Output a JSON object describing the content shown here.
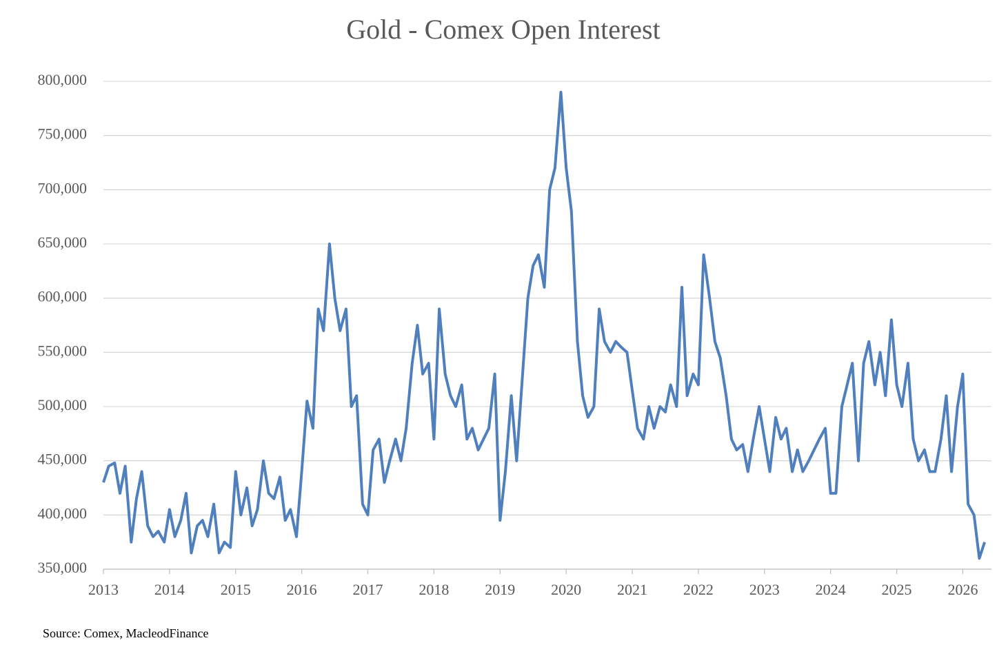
{
  "chart_data": {
    "type": "line",
    "title": "Gold - Comex Open Interest",
    "source": "Source: Comex,  MacleodFinance",
    "x": [
      2013,
      2013.08,
      2013.17,
      2013.25,
      2013.33,
      2013.42,
      2013.5,
      2013.58,
      2013.67,
      2013.75,
      2013.83,
      2013.92,
      2014,
      2014.08,
      2014.17,
      2014.25,
      2014.33,
      2014.42,
      2014.5,
      2014.58,
      2014.67,
      2014.75,
      2014.83,
      2014.92,
      2015,
      2015.08,
      2015.17,
      2015.25,
      2015.33,
      2015.42,
      2015.5,
      2015.58,
      2015.67,
      2015.75,
      2015.83,
      2015.92,
      2016,
      2016.08,
      2016.17,
      2016.25,
      2016.33,
      2016.42,
      2016.5,
      2016.58,
      2016.67,
      2016.75,
      2016.83,
      2016.92,
      2017,
      2017.08,
      2017.17,
      2017.25,
      2017.33,
      2017.42,
      2017.5,
      2017.58,
      2017.67,
      2017.75,
      2017.83,
      2017.92,
      2018,
      2018.08,
      2018.17,
      2018.25,
      2018.33,
      2018.42,
      2018.5,
      2018.58,
      2018.67,
      2018.75,
      2018.83,
      2018.92,
      2019,
      2019.08,
      2019.17,
      2019.25,
      2019.33,
      2019.42,
      2019.5,
      2019.58,
      2019.67,
      2019.75,
      2019.83,
      2019.92,
      2020,
      2020.08,
      2020.17,
      2020.25,
      2020.33,
      2020.42,
      2020.5,
      2020.58,
      2020.67,
      2020.75,
      2020.83,
      2020.92,
      2021,
      2021.08,
      2021.17,
      2021.25,
      2021.33,
      2021.42,
      2021.5,
      2021.58,
      2021.67,
      2021.75,
      2021.83,
      2021.92,
      2022,
      2022.08,
      2022.17,
      2022.25,
      2022.33,
      2022.42,
      2022.5,
      2022.58,
      2022.67,
      2022.75,
      2022.83,
      2022.92,
      2023,
      2023.08,
      2023.17,
      2023.25,
      2023.33,
      2023.42,
      2023.5,
      2023.58,
      2023.67,
      2023.75,
      2023.83,
      2023.92,
      2024,
      2024.08,
      2024.17,
      2024.25,
      2024.33,
      2024.42,
      2024.5,
      2024.58,
      2024.67,
      2024.75,
      2024.83,
      2024.92,
      2025,
      2025.08,
      2025.17,
      2025.25,
      2025.33,
      2025.42,
      2025.5,
      2025.58,
      2025.67,
      2025.75,
      2025.83,
      2025.92,
      2026,
      2026.08,
      2026.17,
      2026.25,
      2026.33
    ],
    "series": [
      {
        "name": "Open Interest",
        "color": "#4f7fbd",
        "values": [
          430000,
          445000,
          448000,
          420000,
          445000,
          375000,
          415000,
          440000,
          390000,
          380000,
          385000,
          375000,
          405000,
          380000,
          395000,
          420000,
          365000,
          390000,
          395000,
          380000,
          410000,
          365000,
          375000,
          370000,
          440000,
          400000,
          425000,
          390000,
          405000,
          450000,
          420000,
          415000,
          435000,
          395000,
          405000,
          380000,
          440000,
          505000,
          480000,
          590000,
          570000,
          650000,
          600000,
          570000,
          590000,
          500000,
          510000,
          410000,
          400000,
          460000,
          470000,
          430000,
          450000,
          470000,
          450000,
          480000,
          540000,
          575000,
          530000,
          540000,
          470000,
          590000,
          530000,
          510000,
          500000,
          520000,
          470000,
          480000,
          460000,
          470000,
          480000,
          530000,
          395000,
          440000,
          510000,
          450000,
          520000,
          600000,
          630000,
          640000,
          610000,
          700000,
          720000,
          790000,
          720000,
          680000,
          560000,
          510000,
          490000,
          500000,
          590000,
          560000,
          550000,
          560000,
          555000,
          550000,
          515000,
          480000,
          470000,
          500000,
          480000,
          500000,
          495000,
          520000,
          500000,
          610000,
          510000,
          530000,
          520000,
          640000,
          600000,
          560000,
          545000,
          510000,
          470000,
          460000,
          465000,
          440000,
          470000,
          500000,
          470000,
          440000,
          490000,
          470000,
          480000,
          440000,
          460000,
          440000,
          450000,
          460000,
          470000,
          480000,
          420000,
          420000,
          500000,
          520000,
          540000,
          450000,
          540000,
          560000,
          520000,
          550000,
          510000,
          580000,
          520000,
          500000,
          540000,
          470000,
          450000,
          460000,
          440000,
          440000,
          470000,
          510000,
          440000,
          500000,
          530000,
          410000,
          400000,
          360000,
          375000
        ]
      }
    ],
    "xlim": [
      2013,
      2026.35
    ],
    "xticks": [
      2013,
      2014,
      2015,
      2016,
      2017,
      2018,
      2019,
      2020,
      2021,
      2022,
      2023,
      2024,
      2025,
      2026
    ],
    "ylim": [
      350000,
      800000
    ],
    "yticks": [
      {
        "value": 350000,
        "label": "350,000"
      },
      {
        "value": 400000,
        "label": "400,000"
      },
      {
        "value": 450000,
        "label": "450,000"
      },
      {
        "value": 500000,
        "label": "500,000"
      },
      {
        "value": 550000,
        "label": "550,000"
      },
      {
        "value": 600000,
        "label": "600,000"
      },
      {
        "value": 650000,
        "label": "650,000"
      },
      {
        "value": 700000,
        "label": "700,000"
      },
      {
        "value": 750000,
        "label": "750,000"
      },
      {
        "value": 800000,
        "label": "800,000"
      }
    ],
    "grid": true
  }
}
